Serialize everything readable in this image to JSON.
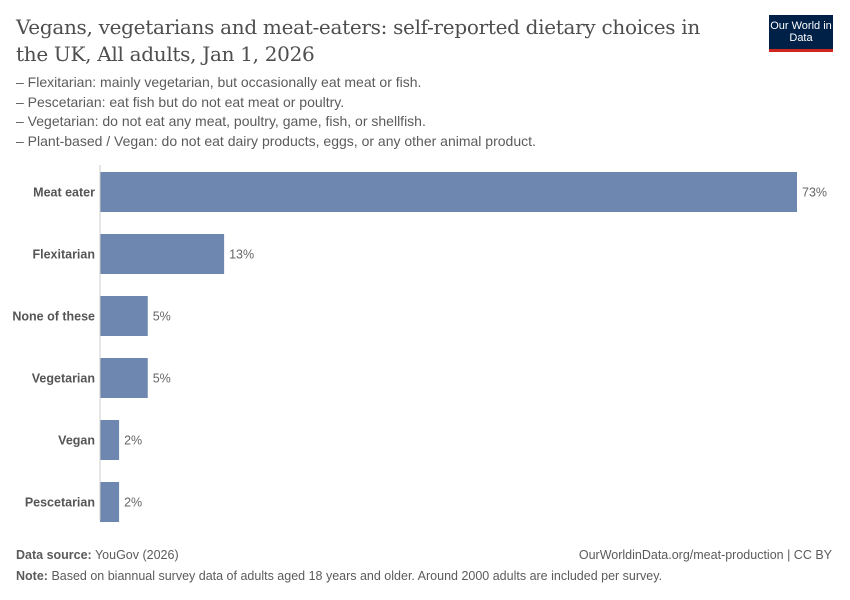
{
  "header": {
    "title": "Vegans, vegetarians and meat-eaters: self-reported dietary choices in the UK, All adults, Jan 1, 2026",
    "subtitle_lines": [
      "– Flexitarian: mainly vegetarian, but occasionally eat meat or fish.",
      "– Pescetarian: eat fish but do not eat meat or poultry.",
      "– Vegetarian: do not eat any meat, poultry, game, fish, or shellfish.",
      "– Plant-based / Vegan: do not eat dairy products, eggs, or any other animal product."
    ],
    "logo_text": "Our World in Data"
  },
  "chart_data": {
    "type": "bar",
    "orientation": "horizontal",
    "categories": [
      "Meat eater",
      "Flexitarian",
      "None of these",
      "Vegetarian",
      "Vegan",
      "Pescetarian"
    ],
    "values": [
      73,
      13,
      5,
      5,
      2,
      2
    ],
    "value_labels": [
      "73%",
      "13%",
      "5%",
      "5%",
      "2%",
      "2%"
    ],
    "unit": "%",
    "xlim": [
      0,
      73
    ],
    "grid": false,
    "bar_color": "#6d87b0"
  },
  "footer": {
    "source_label": "Data source:",
    "source": "YouGov (2026)",
    "url": "OurWorldinData.org/meat-production | CC BY",
    "note_label": "Note:",
    "note": "Based on biannual survey data of adults aged 18 years and older. Around 2000 adults are included per survey."
  }
}
